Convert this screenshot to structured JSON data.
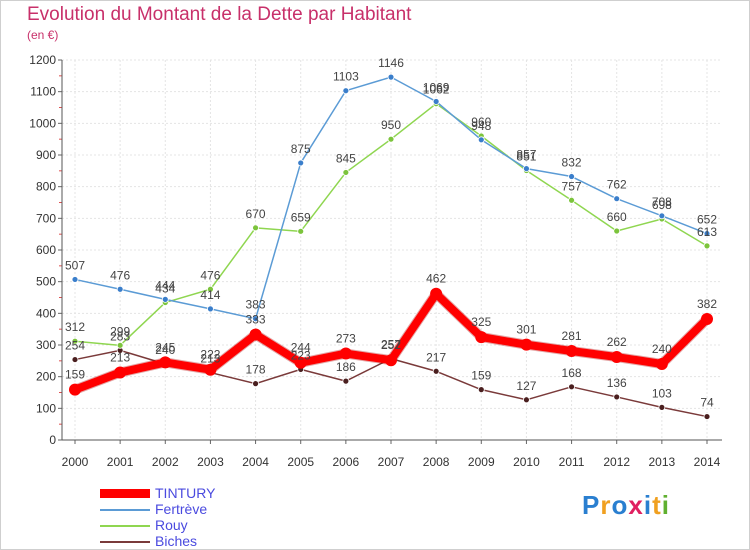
{
  "title": "Evolution du Montant de la Dette par Habitant",
  "unit": "(en €)",
  "logo": {
    "letters": [
      "P",
      "r",
      "o",
      "x",
      "i",
      "t",
      "i"
    ],
    "colors": [
      "#2a7fd0",
      "#f0a020",
      "#2a7fd0",
      "#e02060",
      "#2a7fd0",
      "#f0a020",
      "#60b030"
    ]
  },
  "chart_data": {
    "type": "line",
    "title": "Evolution du Montant de la Dette par Habitant",
    "ylabel": "(en €)",
    "x": [
      "2000",
      "2001",
      "2002",
      "2003",
      "2004",
      "2005",
      "2006",
      "2007",
      "2008",
      "2009",
      "2010",
      "2011",
      "2012",
      "2013",
      "2014"
    ],
    "yticks": [
      "0",
      "100",
      "200",
      "300",
      "400",
      "500",
      "600",
      "700",
      "800",
      "900",
      "1000",
      "1100",
      "1200"
    ],
    "ylim": [
      0,
      1200
    ],
    "grid": true,
    "legend_position": "bottom-left",
    "series": [
      {
        "name": "TINTURY",
        "color": "#ff0000",
        "values": [
          159,
          213,
          245,
          222,
          333,
          244,
          273,
          252,
          462,
          325,
          301,
          281,
          262,
          240,
          382
        ]
      },
      {
        "name": "Fertrève",
        "color": "#5b9bd5",
        "values": [
          507,
          476,
          444,
          414,
          383,
          875,
          1103,
          1146,
          1069,
          948,
          857,
          832,
          762,
          708,
          652
        ]
      },
      {
        "name": "Rouy",
        "color": "#8fd650",
        "values": [
          312,
          299,
          434,
          476,
          670,
          659,
          845,
          950,
          1062,
          960,
          851,
          757,
          660,
          698,
          613
        ]
      },
      {
        "name": "Biches",
        "color": "#7a3a3a",
        "values": [
          254,
          283,
          240,
          213,
          178,
          223,
          186,
          257,
          217,
          159,
          127,
          168,
          136,
          103,
          74
        ]
      }
    ]
  }
}
